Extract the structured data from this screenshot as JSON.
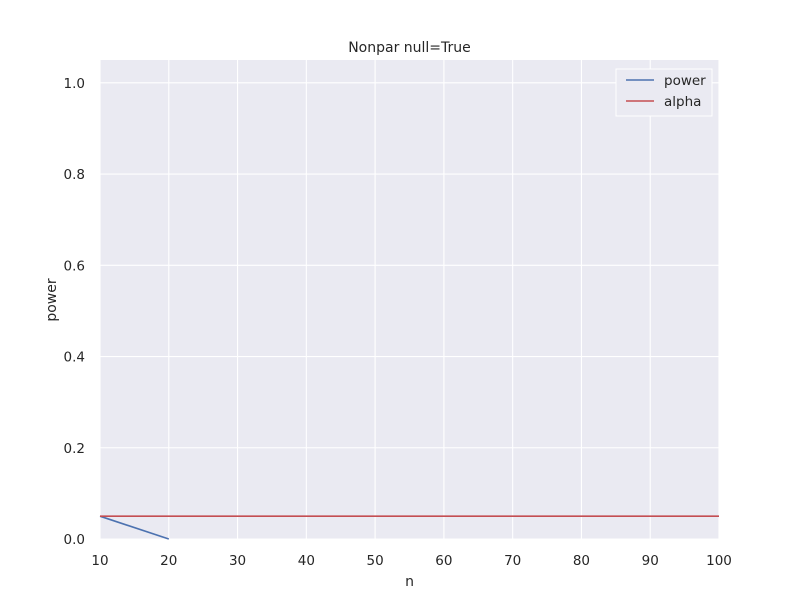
{
  "chart_data": {
    "type": "line",
    "title": "Nonpar null=True",
    "xlabel": "n",
    "ylabel": "power",
    "xlim": [
      10,
      100
    ],
    "ylim": [
      0.0,
      1.05
    ],
    "xticks": [
      10,
      20,
      30,
      40,
      50,
      60,
      70,
      80,
      90,
      100
    ],
    "xtick_labels": [
      "10",
      "20",
      "30",
      "40",
      "50",
      "60",
      "70",
      "80",
      "90",
      "100"
    ],
    "yticks": [
      0.0,
      0.2,
      0.4,
      0.6,
      0.8,
      1.0
    ],
    "ytick_labels": [
      "0.0",
      "0.2",
      "0.4",
      "0.6",
      "0.8",
      "1.0"
    ],
    "grid": true,
    "legend": {
      "position": "top-right",
      "entries": [
        "power",
        "alpha"
      ]
    },
    "series": [
      {
        "name": "power",
        "color": "#4C72B0",
        "x": [
          10,
          20
        ],
        "y": [
          0.05,
          0.0
        ]
      },
      {
        "name": "alpha",
        "color": "#C44E52",
        "x": [
          10,
          100
        ],
        "y": [
          0.05,
          0.05
        ]
      }
    ],
    "colors": {
      "background": "#EAEAF2",
      "grid": "#FFFFFF",
      "text": "#262626"
    }
  }
}
